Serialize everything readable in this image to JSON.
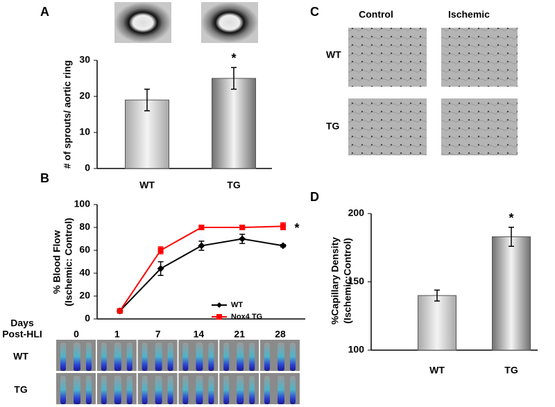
{
  "chart_data": [
    {
      "type": "bar",
      "panel_label": "A",
      "categories": [
        "WT",
        "TG"
      ],
      "values": [
        19,
        25
      ],
      "errors": [
        3,
        3
      ],
      "colors": [
        "#a8a8a8",
        "#707070"
      ],
      "y_label": [
        "# of sprouts/ aortic ring"
      ],
      "ylim": [
        0,
        30
      ],
      "yticks": [
        0,
        10,
        20,
        30
      ],
      "annotation": "*"
    },
    {
      "type": "line",
      "panel_label": "B",
      "x_label": [
        "Days",
        "Post-HLI"
      ],
      "categories": [
        "0",
        "1",
        "7",
        "14",
        "21",
        "28"
      ],
      "series": [
        {
          "name": "WT",
          "color": "#000000",
          "marker": "diamond",
          "values": [
            null,
            7,
            44,
            64,
            70,
            64
          ],
          "errors": [
            null,
            2,
            6,
            4,
            4,
            1
          ]
        },
        {
          "name": "Nox4 TG",
          "color": "#ff0000",
          "marker": "square",
          "values": [
            null,
            7,
            60,
            80,
            80,
            81
          ],
          "errors": [
            null,
            1,
            3,
            2,
            1,
            3
          ]
        }
      ],
      "y_label": [
        "% Blood Flow",
        "(Ischemic: Control)"
      ],
      "ylim": [
        0,
        100
      ],
      "yticks": [
        0,
        20,
        40,
        60,
        80,
        100
      ],
      "annotation": "*",
      "image_rows": [
        "WT",
        "TG"
      ]
    },
    {
      "type": "bar",
      "panel_label": "D",
      "categories": [
        "WT",
        "TG"
      ],
      "values": [
        140,
        183
      ],
      "errors": [
        4,
        7
      ],
      "colors": [
        "#a8a8a8",
        "#707070"
      ],
      "y_label": [
        "%Capillary Density",
        "(Ischemic:Control)"
      ],
      "ylim": [
        100,
        200
      ],
      "yticks": [
        100,
        150,
        200
      ],
      "annotation": "*"
    }
  ],
  "panel_c": {
    "label": "C",
    "columns": [
      "Control",
      "Ischemic"
    ],
    "rows": [
      "WT",
      "TG"
    ]
  }
}
